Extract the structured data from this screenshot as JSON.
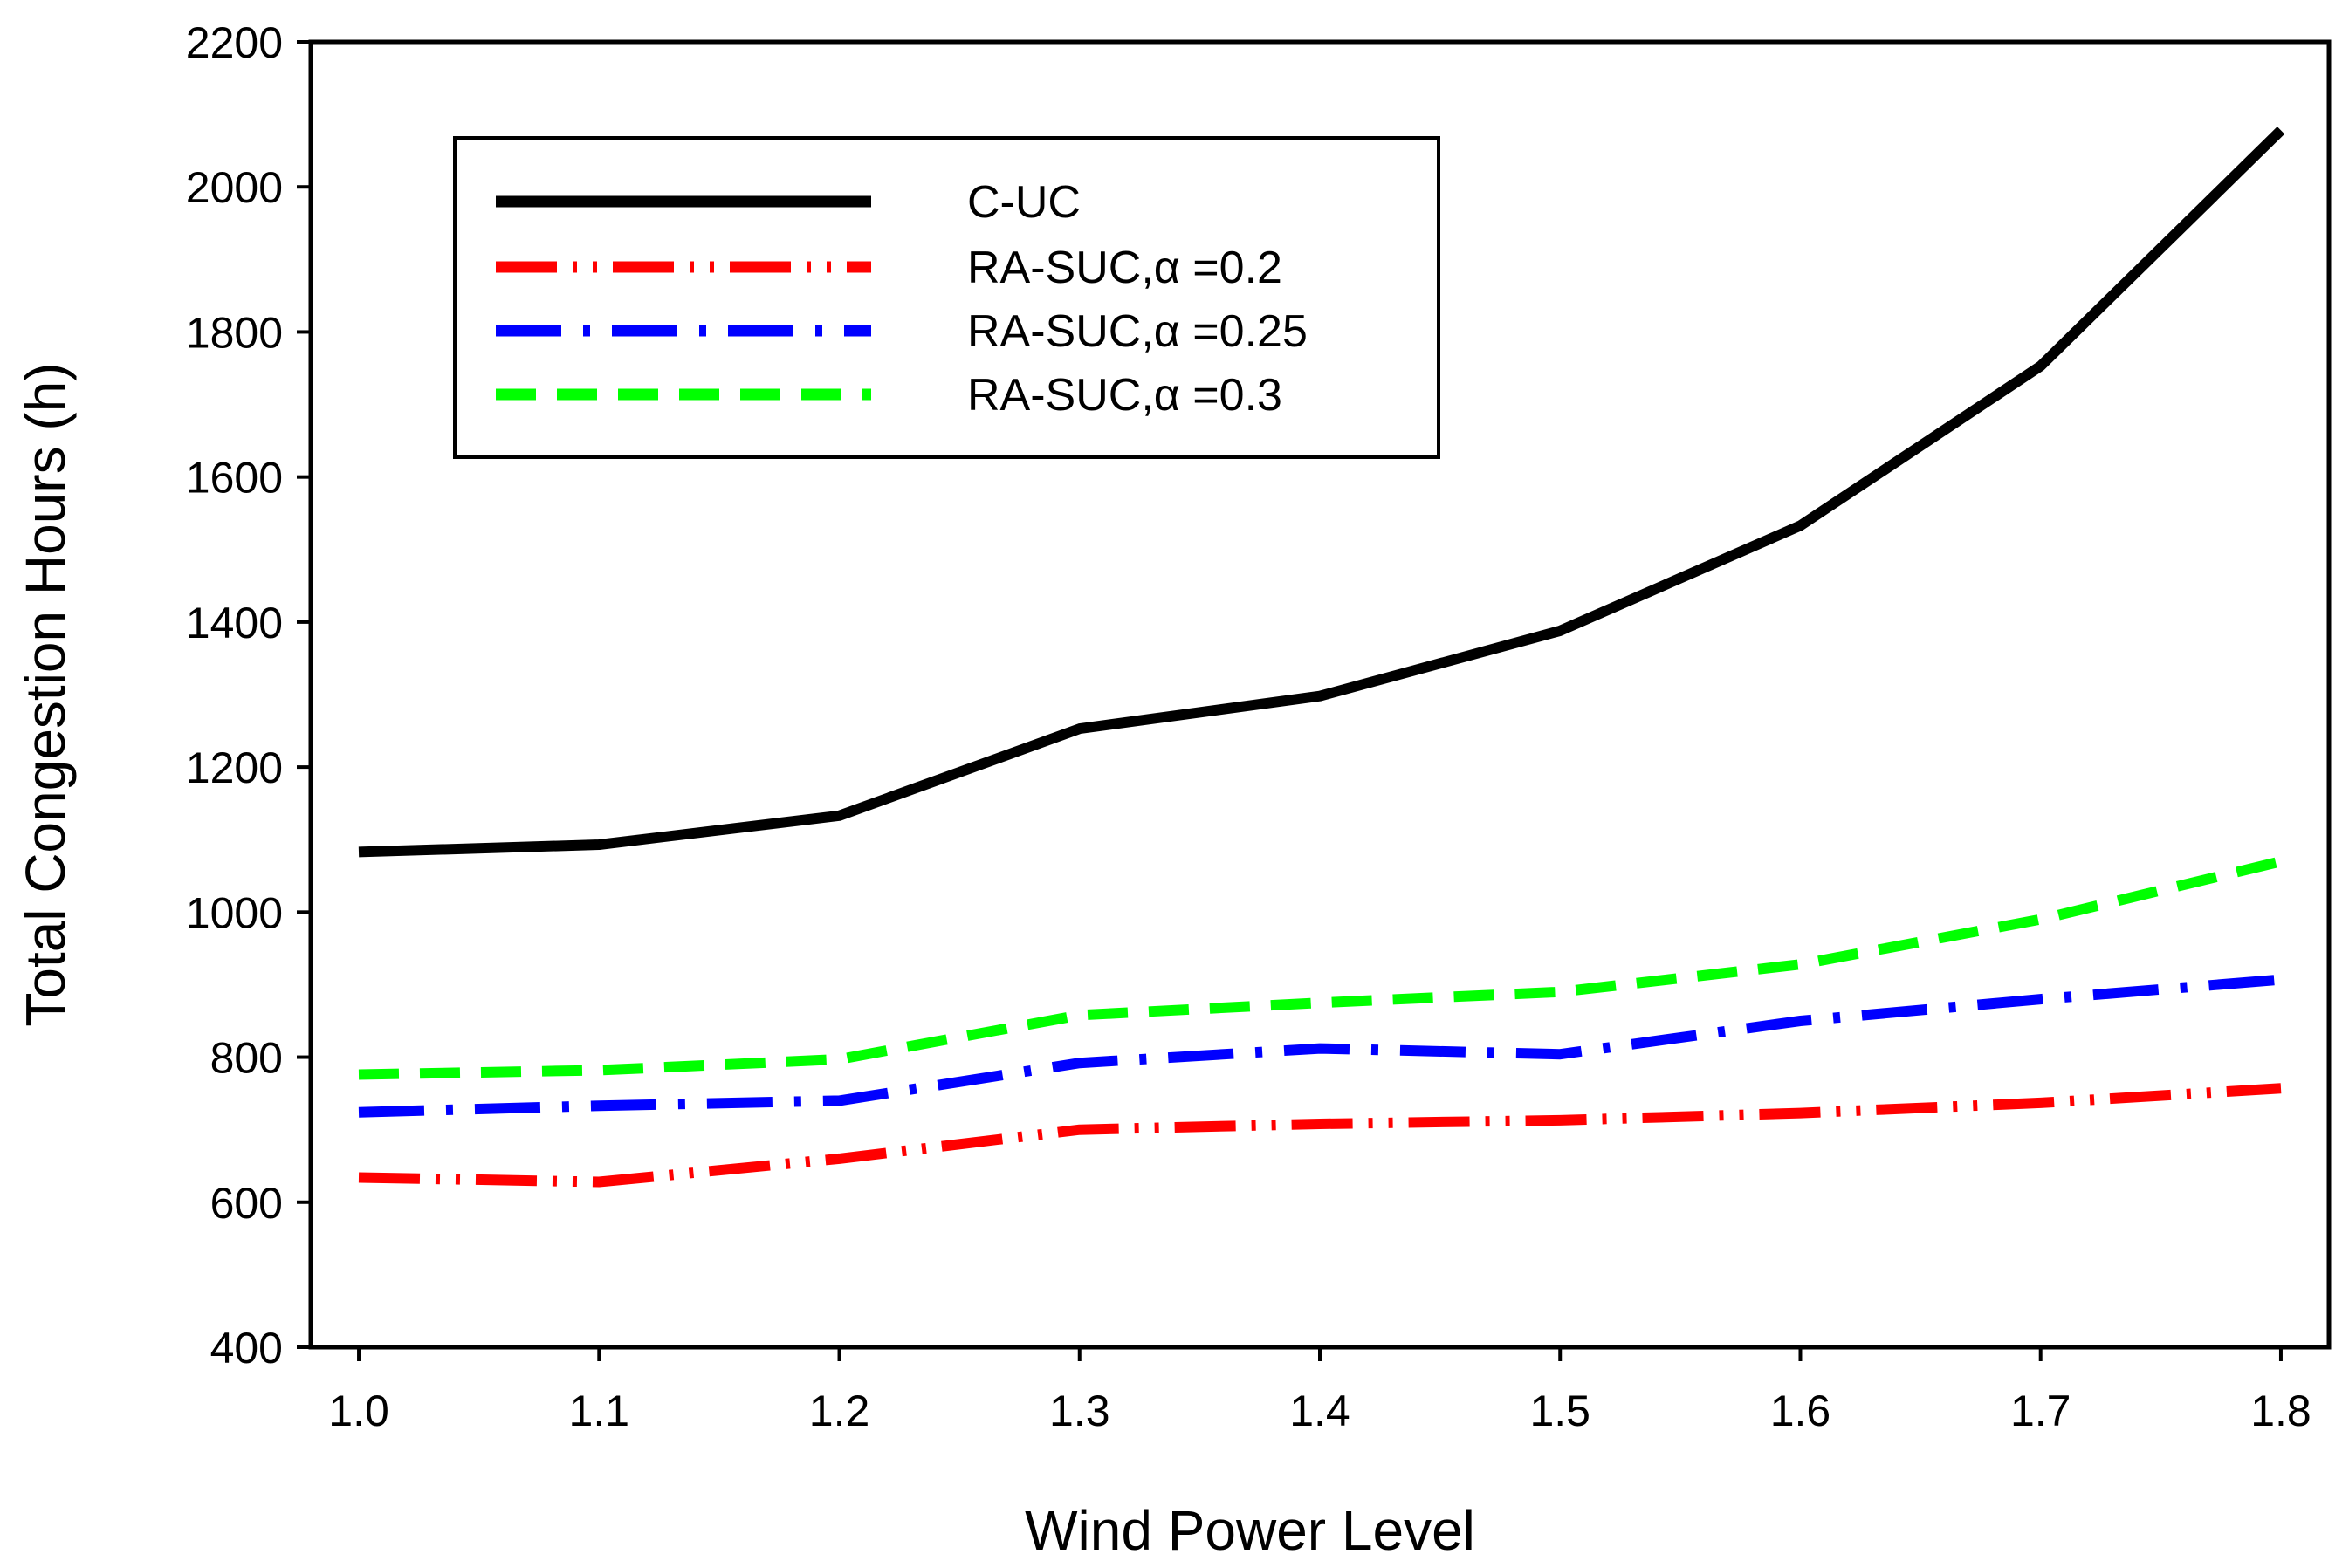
{
  "chart_data": {
    "type": "line",
    "title": "",
    "xlabel": "Wind Power Level",
    "ylabel": "Total Congestion Hours (h)",
    "x": [
      1.0,
      1.1,
      1.2,
      1.3,
      1.4,
      1.5,
      1.6,
      1.7,
      1.8
    ],
    "x_tick_labels": [
      "1.0",
      "1.1",
      "1.2",
      "1.3",
      "1.4",
      "1.5",
      "1.6",
      "1.7",
      "1.8"
    ],
    "xlim": [
      0.98,
      1.82
    ],
    "ylim": [
      400,
      2200
    ],
    "y_ticks": [
      400,
      600,
      800,
      1000,
      1200,
      1400,
      1600,
      1800,
      2000,
      2200
    ],
    "y_tick_labels": [
      "400",
      "600",
      "800",
      "1000",
      "1200",
      "1400",
      "1600",
      "1800",
      "2000",
      "2200"
    ],
    "grid": false,
    "legend_position": "top-left",
    "series": [
      {
        "name": "C-UC",
        "label": "C-UC",
        "color": "#000000",
        "style": "solid",
        "values": [
          1083,
          1093,
          1133,
          1253,
          1298,
          1388,
          1533,
          1753,
          2078
        ]
      },
      {
        "name": "RA-SUC,α =0.2",
        "label": "RA-SUC,α =0.2",
        "color": "#ff0000",
        "style": "dash-dot-dot",
        "values": [
          634,
          628,
          660,
          700,
          708,
          713,
          723,
          737,
          757
        ]
      },
      {
        "name": "RA-SUC,α =0.25",
        "label": "RA-SUC,α =0.25",
        "color": "#0000ff",
        "style": "dash-dot",
        "values": [
          724,
          733,
          740,
          792,
          812,
          804,
          850,
          880,
          907
        ]
      },
      {
        "name": "RA-SUC,α =0.3",
        "label": "RA-SUC,α =0.3",
        "color": "#00ff00",
        "style": "dashed",
        "values": [
          776,
          782,
          797,
          858,
          875,
          890,
          928,
          990,
          1070
        ]
      }
    ]
  }
}
